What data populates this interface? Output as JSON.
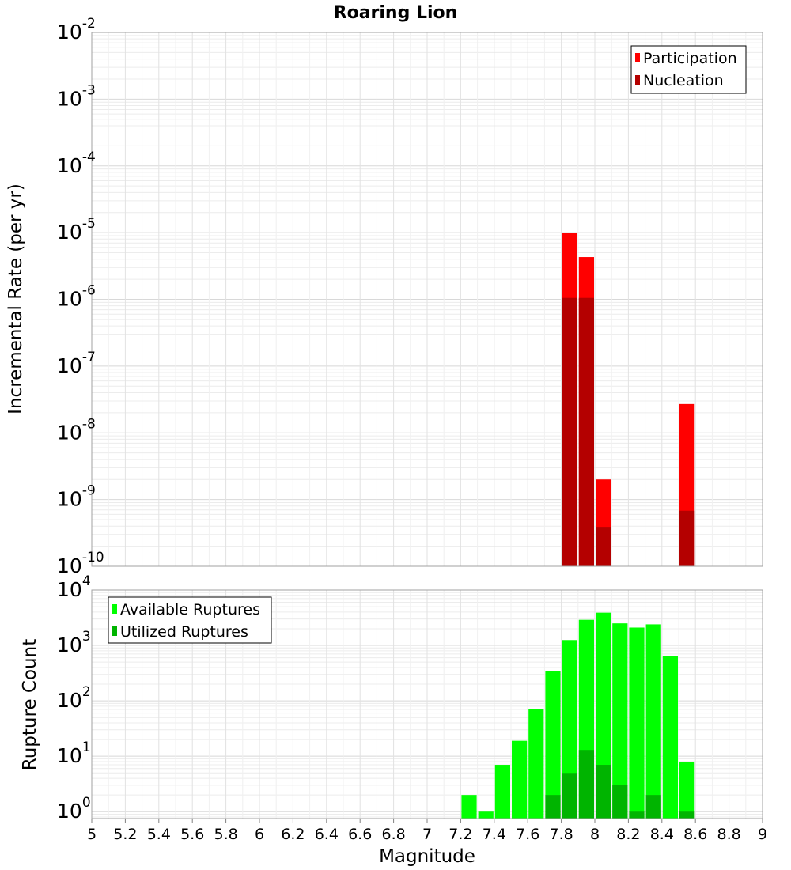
{
  "chart_data": {
    "title": "Roaring Lion",
    "xlabel": "Magnitude",
    "xlim": [
      5,
      9
    ],
    "x_ticks": [
      "5",
      "5.2",
      "5.4",
      "5.6",
      "5.8",
      "6",
      "6.2",
      "6.4",
      "6.6",
      "6.8",
      "7",
      "7.2",
      "7.4",
      "7.6",
      "7.8",
      "8",
      "8.2",
      "8.4",
      "8.6",
      "8.8",
      "9"
    ],
    "bin_width": 0.1,
    "panels": [
      {
        "type": "bar",
        "ylabel": "Incremental Rate (per yr)",
        "yscale": "log",
        "ylim": [
          1e-10,
          0.01
        ],
        "y_tick_exponents": [
          -10,
          -9,
          -8,
          -7,
          -6,
          -5,
          -4,
          -3,
          -2
        ],
        "grid": true,
        "legend_position": "top-right",
        "series": [
          {
            "name": "Participation",
            "color": "#ff0000",
            "x": [
              7.85,
              7.95,
              8.05,
              8.55
            ],
            "values": [
              1e-05,
              4.3e-06,
              2e-09,
              2.7e-08
            ]
          },
          {
            "name": "Nucleation",
            "color": "#b40000",
            "x": [
              7.85,
              7.95,
              8.05,
              8.55
            ],
            "values": [
              1.05e-06,
              1.05e-06,
              3.9e-10,
              6.8e-10
            ]
          }
        ]
      },
      {
        "type": "bar",
        "ylabel": "Rupture Count",
        "yscale": "log",
        "ylim": [
          0.75,
          10000
        ],
        "y_tick_exponents": [
          0,
          1,
          2,
          3,
          4
        ],
        "grid": true,
        "legend_position": "top-left",
        "series": [
          {
            "name": "Available Ruptures",
            "color": "#00ff00",
            "x": [
              7.25,
              7.35,
              7.45,
              7.55,
              7.65,
              7.75,
              7.85,
              7.95,
              8.05,
              8.15,
              8.25,
              8.35,
              8.45,
              8.55
            ],
            "values": [
              2,
              1,
              7,
              19,
              72,
              350,
              1250,
              2900,
              3900,
              2500,
              2100,
              2400,
              650,
              8
            ]
          },
          {
            "name": "Utilized Ruptures",
            "color": "#00b400",
            "x": [
              7.75,
              7.85,
              7.95,
              8.05,
              8.15,
              8.25,
              8.35,
              8.55
            ],
            "values": [
              2,
              5,
              13,
              7,
              3,
              1,
              2,
              1
            ]
          }
        ]
      }
    ]
  }
}
